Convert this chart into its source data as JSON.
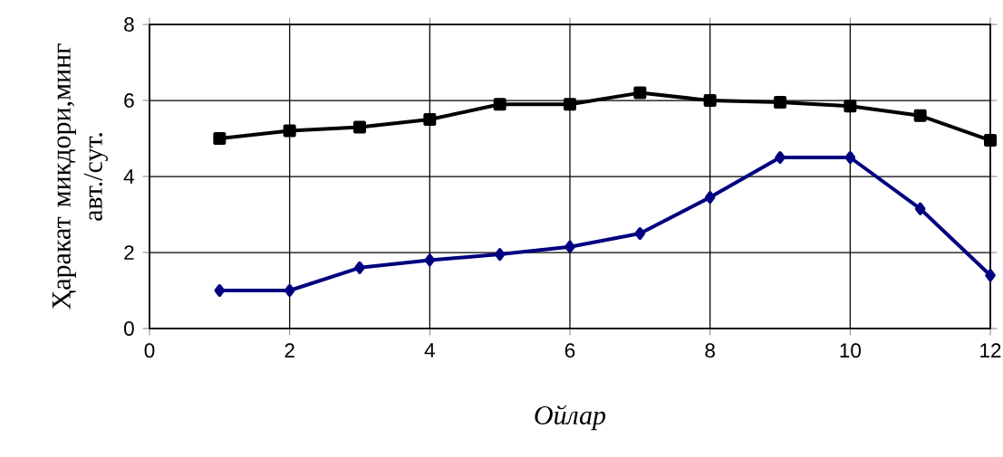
{
  "chart_data": {
    "type": "line",
    "xlabel": "Ойлар",
    "ylabel": "Ҳаракат микдори,минг авт./сут.",
    "x": [
      1,
      2,
      3,
      4,
      5,
      6,
      7,
      8,
      9,
      10,
      11,
      12
    ],
    "series": [
      {
        "color": "#000000",
        "marker": "square",
        "values": [
          5.0,
          5.2,
          5.3,
          5.5,
          5.9,
          5.9,
          6.2,
          6.0,
          5.95,
          5.85,
          5.6,
          4.95
        ]
      },
      {
        "color": "#000080",
        "marker": "diamond",
        "values": [
          1.0,
          1.0,
          1.6,
          1.8,
          1.95,
          2.15,
          2.5,
          3.45,
          4.5,
          4.5,
          3.15,
          1.4
        ]
      }
    ],
    "xlim": [
      0,
      12
    ],
    "ylim": [
      0,
      8
    ],
    "xticks": [
      0,
      2,
      4,
      6,
      8,
      10,
      12
    ],
    "yticks": [
      0,
      2,
      4,
      6,
      8
    ],
    "grid": true,
    "line_style": "solid"
  }
}
